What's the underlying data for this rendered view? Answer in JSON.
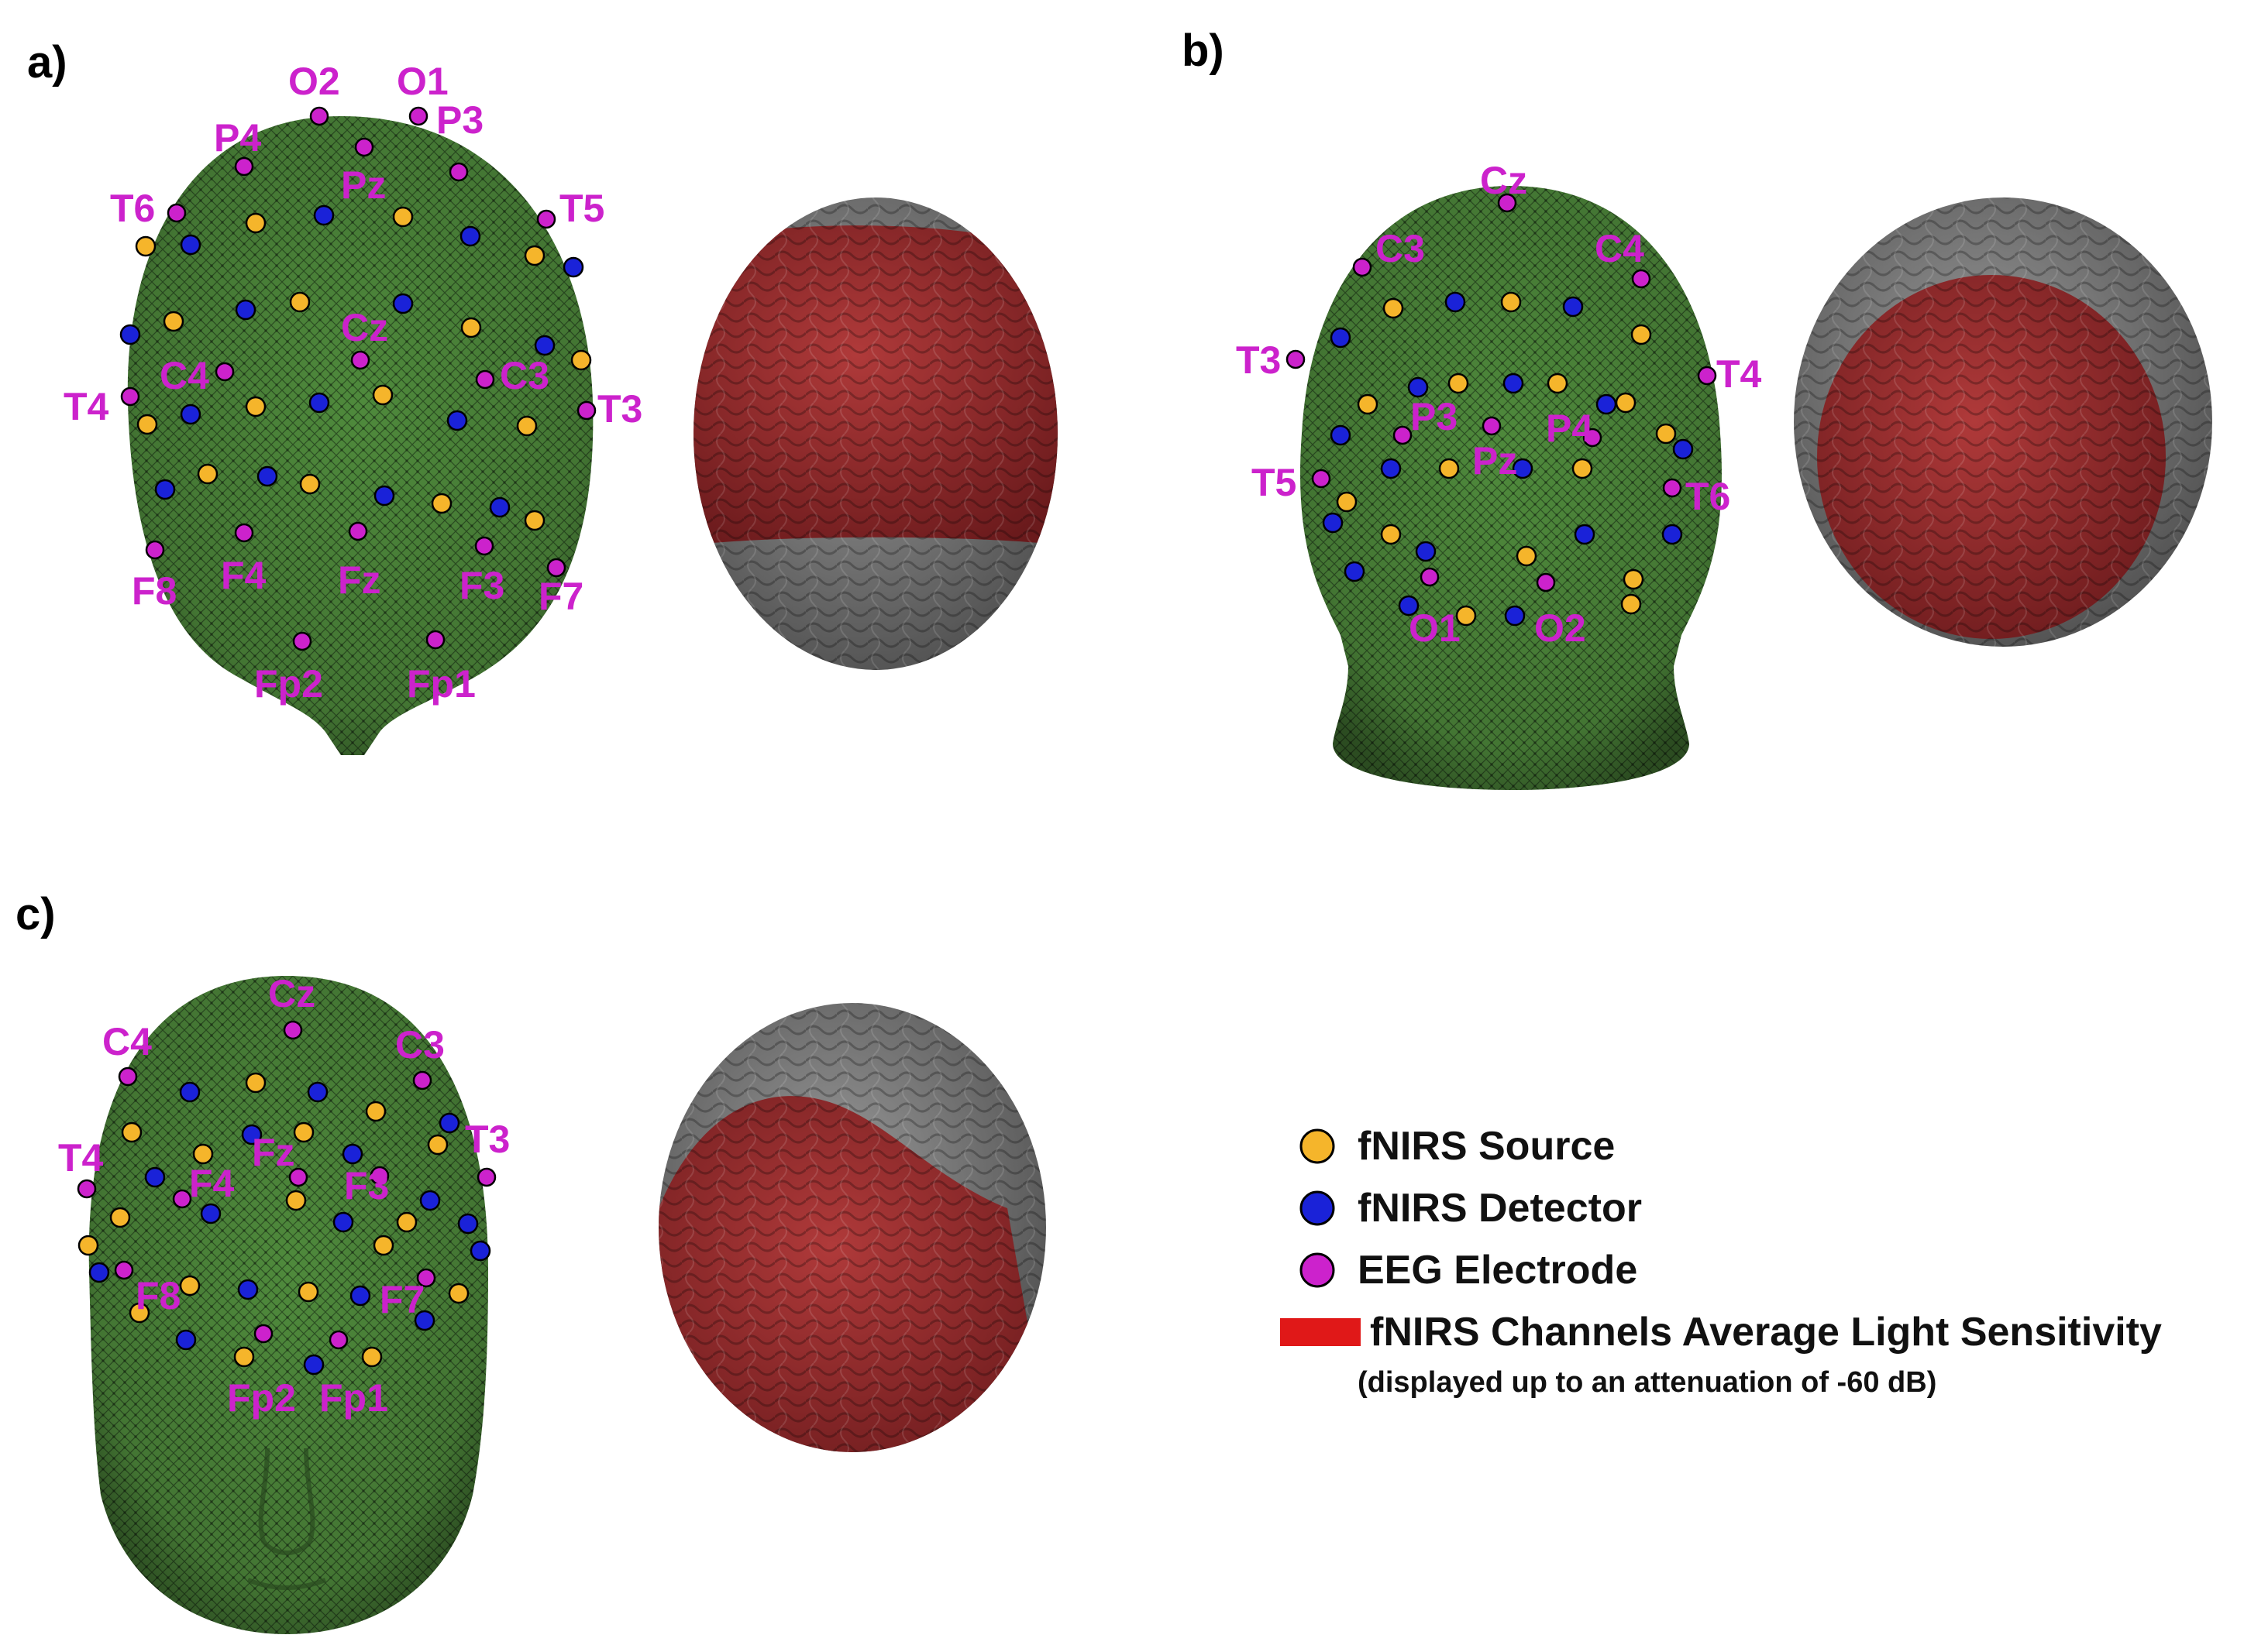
{
  "panels": [
    {
      "label": "a)"
    },
    {
      "label": "b)"
    },
    {
      "label": "c)"
    }
  ],
  "colors": {
    "source": "#f5b52b",
    "detector": "#1a22d8",
    "eeg": "#cc22cc",
    "head": "#4a7a3a",
    "brain_gray": "#7a7a7a",
    "brain_red": "#a0282a",
    "sensitivity": "#e01818"
  },
  "eeg_labels": {
    "a": [
      "O2",
      "O1",
      "P4",
      "P3",
      "Pz",
      "T6",
      "T5",
      "Cz",
      "C4",
      "C3",
      "T4",
      "T3",
      "F8",
      "F4",
      "Fz",
      "F3",
      "F7",
      "Fp2",
      "Fp1"
    ],
    "b": [
      "Cz",
      "C3",
      "C4",
      "T3",
      "T4",
      "P3",
      "Pz",
      "P4",
      "T5",
      "T6",
      "O1",
      "O2"
    ],
    "c": [
      "Cz",
      "C4",
      "C3",
      "T4",
      "T3",
      "Fz",
      "F4",
      "F3",
      "F8",
      "F7",
      "Fp2",
      "Fp1"
    ]
  },
  "legend": {
    "source": "fNIRS Source",
    "detector": "fNIRS Detector",
    "eeg": "EEG Electrode",
    "sensitivity": "fNIRS Channels Average Light Sensitivity",
    "note": "(displayed up to an attenuation of -60 dB)"
  }
}
